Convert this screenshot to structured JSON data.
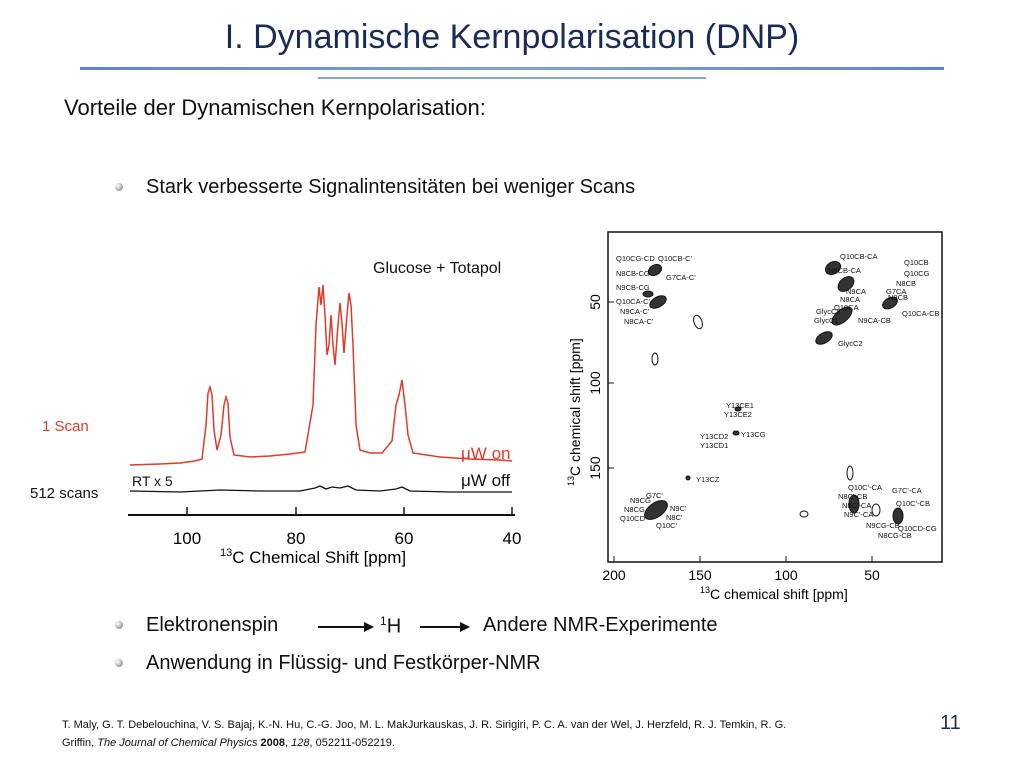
{
  "slide": {
    "title": "I. Dynamische Kernpolarisation (DNP)",
    "subheading": "Vorteile der Dynamischen Kernpolarisation:",
    "bullets": {
      "b1": "Stark verbesserte Signalintensitäten bei weniger Scans",
      "b2_a": "Elektronenspin",
      "b2_b_super": "1",
      "b2_b": "H",
      "b2_c": "Andere NMR-Experimente",
      "b3": "Anwendung in Flüssig- und Festkörper-NMR"
    },
    "citation": {
      "line1": "T. Maly, G. T. Debelouchina, V. S. Bajaj, K.-N. Hu, C.-G. Joo, M. L. MakJurkauskas, J. R. Sirigiri, P. C. A. van der Wel, J. Herzfeld, R. J. Temkin, R. G.",
      "authors_end": "Griffin, ",
      "journal": "The Journal of Chemical Physics",
      "year": "2008",
      "volume": "128",
      "pages": ", 052211-052219."
    },
    "page_number": "11",
    "side_labels": {
      "one_scan": "1 Scan",
      "scans_512": "512 scans"
    },
    "colors": {
      "title": "#1a2b55",
      "accent_rule": "#5b86c6",
      "uw_on": "#e03a2a",
      "uw_off": "#111111"
    }
  },
  "left_plot": {
    "label": "Glucose + Totapol",
    "rt_label": "RT x 5",
    "uw_on_prefix": "μ",
    "uw_on": "W on",
    "uw_off_prefix": "μ",
    "uw_off": "W off",
    "xlabel_super": "13",
    "xlabel": "C Chemical Shift [ppm]",
    "ticks": [
      "100",
      "80",
      "60",
      "40"
    ]
  },
  "right_plot": {
    "xlabel_super": "13",
    "xlabel": "C chemical shift [ppm]",
    "ylabel_super": "13",
    "ylabel": "C chemical shift [ppm]",
    "xticks": [
      "200",
      "150",
      "100",
      "50"
    ],
    "yticks": [
      "50",
      "100",
      "150"
    ],
    "annotations": {
      "q10_cg_cd": "Q10CG-CD",
      "q10_cb_c": "Q10CB-C'",
      "n8_cb_cg": "N8CB-CG",
      "g7_ca_c": "G7CA-C'",
      "n9_cb_cg": "N9CB-CG",
      "q10_ca_c": "Q10CA-C'",
      "n9_ca_c": "N9CA-C'",
      "n8_ca_c": "N8CA-C'",
      "q10_cb_ca": "Q10CB-CA",
      "q10_cb": "Q10CB",
      "n8_cb_ca": "N8CB-CA",
      "q10_cg": "Q10CG",
      "n8_cb": "N8CB",
      "g7_ca": "G7CA",
      "n9_cb": "N9CB",
      "n9_ca": "N9CA",
      "n8_ca": "N8CA",
      "q10_ca": "Q10CA",
      "glyc_c3": "GlycC3",
      "glyc_c1": "GlycC1",
      "n9_ca_cb": "N9CA-CB",
      "q10_ca_cb": "Q10CA-CB",
      "glyc_c2": "GlycC2",
      "y13_ce1": "Y13CE1",
      "y13_ce2": "Y13CE2",
      "y13_cg": "Y13CG",
      "y13_cd2": "Y13CD2",
      "y13_cd1": "Y13CD1",
      "y13_cz": "Y13CZ",
      "g7_c": "G7C'",
      "n9_cg": "N9CG",
      "n8_cg": "N8CG",
      "q10_cd": "Q10CD",
      "n9_c": "N9C'",
      "n8_c": "N8C'",
      "q10_c": "Q10C'",
      "q10_c_ca": "Q10C'-CA",
      "g7_c_ca": "G7C'-CA",
      "n8_c_cb": "N8C'-CB",
      "q10_c_cb": "Q10C'-CB",
      "n8_c_ca": "N8C'-CA",
      "n9_c_ca": "N9C'-CA",
      "n9_cg_cb": "N9CG-CB",
      "q10_cd_cg": "Q10CD-CG",
      "n8_cg_cb": "N8CG-CB"
    }
  }
}
